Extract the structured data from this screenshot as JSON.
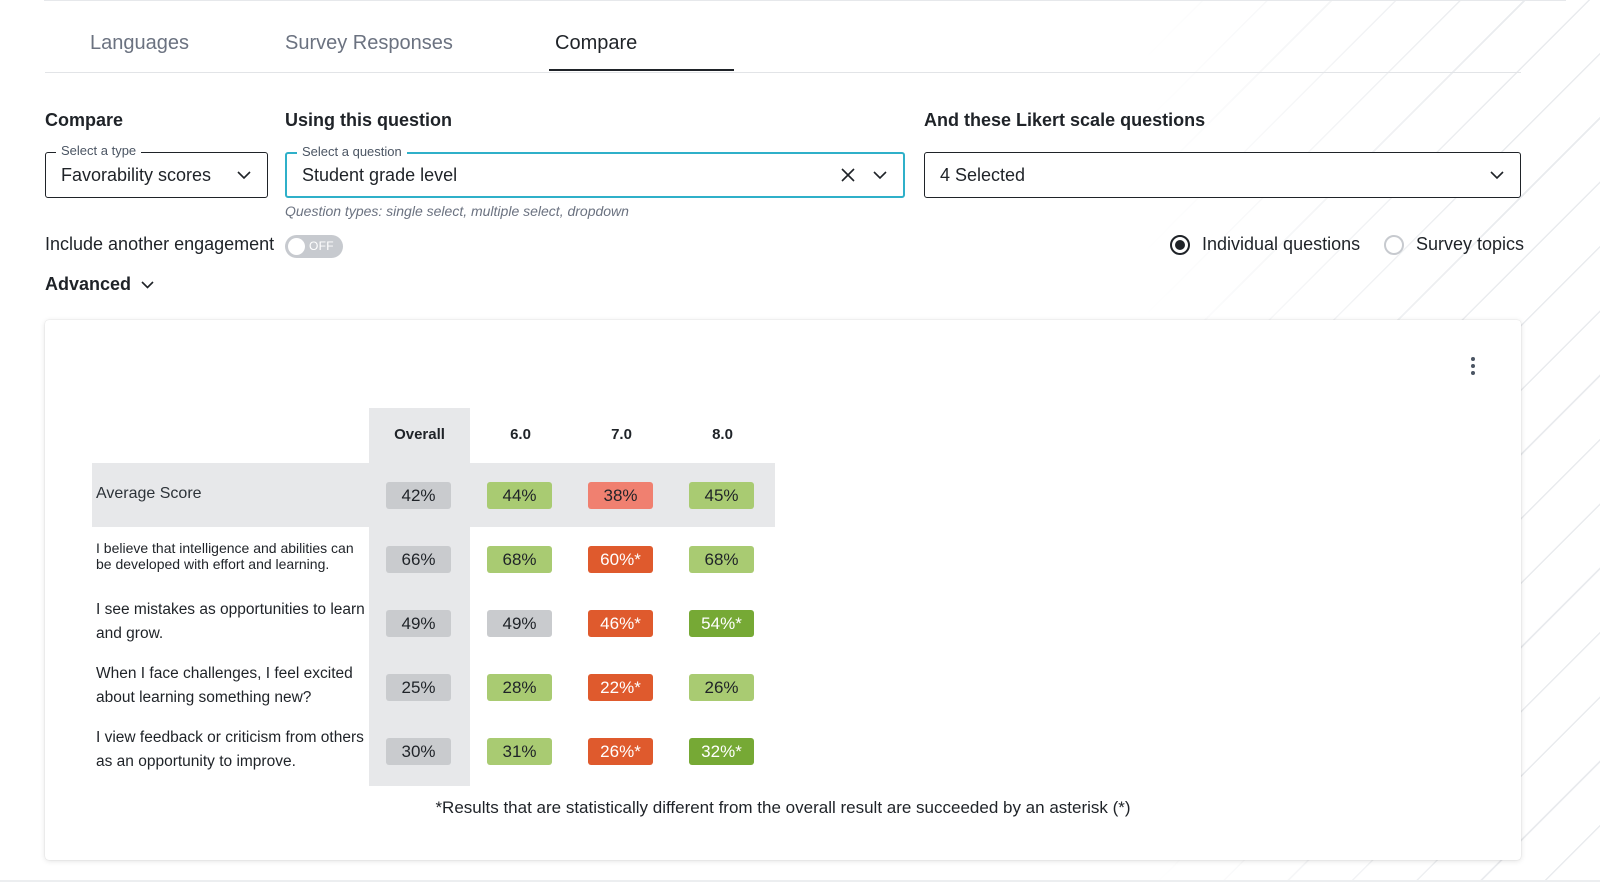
{
  "tabs": [
    {
      "label": "Languages",
      "active": false
    },
    {
      "label": "Survey Responses",
      "active": false
    },
    {
      "label": "Compare",
      "active": true
    }
  ],
  "compare": {
    "label": "Compare",
    "legend": "Select a type",
    "value": "Favorability scores"
  },
  "question": {
    "label": "Using this question",
    "legend": "Select a question",
    "value": "Student grade level",
    "hint": "Question types: single select, multiple select, dropdown"
  },
  "likert": {
    "label": "And these Likert scale questions",
    "value": "4 Selected"
  },
  "engagement": {
    "label": "Include another engagement",
    "toggle_text": "OFF",
    "enabled": false
  },
  "view_mode": {
    "options": [
      {
        "label": "Individual questions",
        "checked": true
      },
      {
        "label": "Survey topics",
        "checked": false
      }
    ]
  },
  "advanced": {
    "label": "Advanced"
  },
  "colors": {
    "neutral": "#c9cbce",
    "green_light": "#a9cb72",
    "green_strong": "#76a935",
    "red_light": "#f08070",
    "red_strong": "#df5a2d",
    "focus": "#2fb0c9"
  },
  "table": {
    "columns": [
      "Overall",
      "6.0",
      "7.0",
      "8.0"
    ],
    "rows": [
      {
        "label": "Average Score",
        "cells": [
          {
            "text": "42%",
            "tone": "neutral"
          },
          {
            "text": "44%",
            "tone": "green_light"
          },
          {
            "text": "38%",
            "tone": "red_light"
          },
          {
            "text": "45%",
            "tone": "green_light"
          }
        ]
      },
      {
        "label": "I believe that intelligence and abilities can be developed with effort and learning.",
        "cells": [
          {
            "text": "66%",
            "tone": "neutral"
          },
          {
            "text": "68%",
            "tone": "green_light"
          },
          {
            "text": "60%*",
            "tone": "red_strong"
          },
          {
            "text": "68%",
            "tone": "green_light"
          }
        ]
      },
      {
        "label": "I see mistakes as opportunities to learn and grow.",
        "cells": [
          {
            "text": "49%",
            "tone": "neutral"
          },
          {
            "text": "49%",
            "tone": "neutral"
          },
          {
            "text": "46%*",
            "tone": "red_strong"
          },
          {
            "text": "54%*",
            "tone": "green_strong"
          }
        ]
      },
      {
        "label": "When I face challenges, I feel excited about learning something new?",
        "cells": [
          {
            "text": "25%",
            "tone": "neutral"
          },
          {
            "text": "28%",
            "tone": "green_light"
          },
          {
            "text": "22%*",
            "tone": "red_strong"
          },
          {
            "text": "26%",
            "tone": "green_light"
          }
        ]
      },
      {
        "label": "I view feedback or criticism from others as an opportunity to improve.",
        "cells": [
          {
            "text": "30%",
            "tone": "neutral"
          },
          {
            "text": "31%",
            "tone": "green_light"
          },
          {
            "text": "26%*",
            "tone": "red_strong"
          },
          {
            "text": "32%*",
            "tone": "green_strong"
          }
        ]
      }
    ],
    "footnote": "*Results that are statistically different from the overall result are succeeded by an asterisk (*)"
  }
}
